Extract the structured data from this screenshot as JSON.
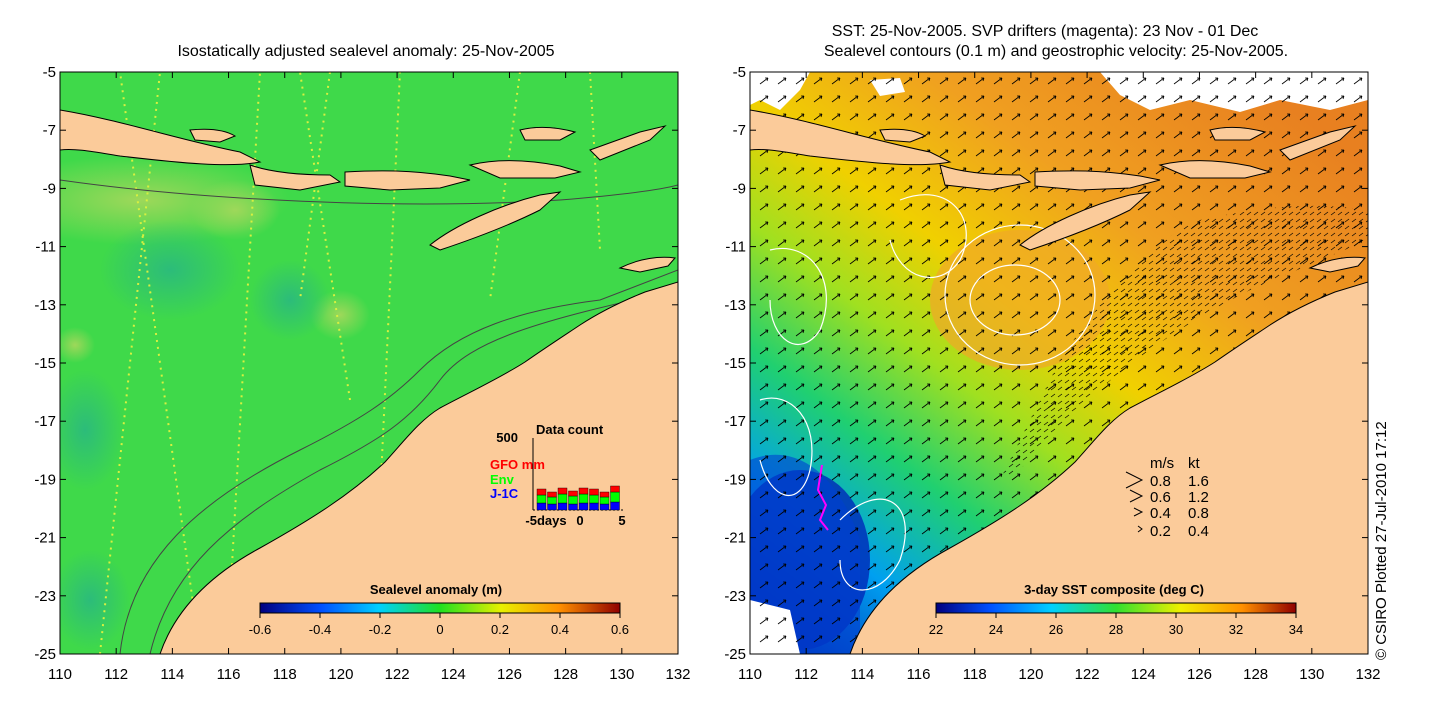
{
  "left_panel": {
    "title": "Isostatically adjusted sealevel anomaly: 25-Nov-2005",
    "colorbar": {
      "label": "Sealevel anomaly (m)",
      "ticks": [
        "-0.6",
        "-0.4",
        "-0.2",
        "0",
        "0.2",
        "0.4",
        "0.6"
      ]
    },
    "data_count": {
      "title": "Data count",
      "ymax_label": "500",
      "series": [
        {
          "name": "GFO mm",
          "color": "#ff0000"
        },
        {
          "name": "Env",
          "color": "#00ff00"
        },
        {
          "name": "J-1C",
          "color": "#0000ff"
        }
      ],
      "x_labels": [
        "-5days",
        "0",
        "5"
      ]
    }
  },
  "right_panel": {
    "title_line1": "SST: 25-Nov-2005. SVP drifters (magenta): 23 Nov - 01 Dec",
    "title_line2": "Sealevel contours (0.1 m) and geostrophic velocity: 25-Nov-2005.",
    "colorbar": {
      "label": "3-day SST composite (deg C)",
      "ticks": [
        "22",
        "24",
        "26",
        "28",
        "30",
        "32",
        "34"
      ]
    },
    "velocity_legend": {
      "header_ms": "m/s",
      "header_kt": "kt",
      "rows": [
        {
          "ms": "0.8",
          "kt": "1.6"
        },
        {
          "ms": "0.6",
          "kt": "1.2"
        },
        {
          "ms": "0.4",
          "kt": "0.8"
        },
        {
          "ms": "0.2",
          "kt": "0.4"
        }
      ]
    }
  },
  "axes": {
    "y_ticks": [
      "-5",
      "-7",
      "-9",
      "-11",
      "-13",
      "-15",
      "-17",
      "-19",
      "-21",
      "-23",
      "-25"
    ],
    "x_ticks": [
      "110",
      "112",
      "114",
      "116",
      "118",
      "120",
      "122",
      "124",
      "126",
      "128",
      "130",
      "132"
    ]
  },
  "credit": "© CSIRO Plotted 27-Jul-2010 17:12",
  "colors": {
    "land": "#fbcb9a",
    "ocean_green": "#3fd94a",
    "sst_orange": "#f0a020",
    "sst_blue": "#0030c0"
  }
}
